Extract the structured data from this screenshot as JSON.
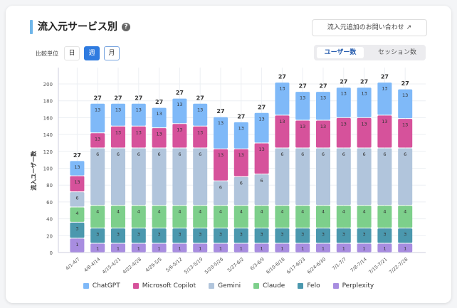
{
  "header": {
    "title": "流入元サービス別",
    "help_icon": "?",
    "contact_button": "流入元追加のお問い合わせ ↗"
  },
  "controls": {
    "unit_label": "比較単位",
    "units": [
      "日",
      "週",
      "月"
    ],
    "selected_unit": "週",
    "metric_tabs": [
      "ユーザー数",
      "セッション数"
    ],
    "selected_metric": "ユーザー数"
  },
  "chart_data": {
    "type": "bar",
    "stacked": true,
    "title": "流入元サービス別",
    "xlabel": "",
    "ylabel": "流入ユーザー数",
    "ylim": [
      0,
      200
    ],
    "yticks": [
      0,
      20,
      40,
      60,
      80,
      100,
      120,
      140,
      160,
      180,
      200
    ],
    "grid": true,
    "legend_position": "bottom",
    "categories": [
      "4/1-4/7",
      "4/8-4/14",
      "4/15-4/21",
      "4/22-4/28",
      "4/29-5/5",
      "5/6-5/12",
      "5/13-5/19",
      "5/20-5/26",
      "5/27-6/2",
      "6/3-6/9",
      "6/10-6/16",
      "6/17-6/23",
      "6/24-6/30",
      "7/1-7/7",
      "7/8-7/14",
      "7/15-7/21",
      "7/22-7/28"
    ],
    "series": [
      {
        "name": "Perplexity",
        "color": "#a88de0",
        "label": "1",
        "values": [
          17,
          11,
          11,
          11,
          11,
          11,
          11,
          11,
          11,
          11,
          11,
          11,
          11,
          11,
          11,
          11,
          11
        ]
      },
      {
        "name": "Felo",
        "color": "#4b98ae",
        "label": "3",
        "values": [
          19,
          18,
          18,
          18,
          18,
          18,
          18,
          18,
          18,
          18,
          18,
          18,
          18,
          18,
          18,
          18,
          18
        ]
      },
      {
        "name": "Claude",
        "color": "#7dcf8b",
        "label": "4",
        "values": [
          18,
          27,
          27,
          27,
          27,
          27,
          27,
          27,
          27,
          27,
          27,
          27,
          27,
          27,
          27,
          27,
          27
        ]
      },
      {
        "name": "Gemini",
        "color": "#b1c5dc",
        "label": "6",
        "values": [
          18,
          68,
          68,
          68,
          68,
          68,
          68,
          29,
          34,
          37,
          68,
          68,
          68,
          68,
          68,
          68,
          68
        ]
      },
      {
        "name": "Microsoft Copilot",
        "color": "#d6529b",
        "label": "13",
        "values": [
          19,
          18,
          26,
          26,
          24,
          29,
          26,
          38,
          33,
          37,
          39,
          33,
          33,
          36,
          36,
          39,
          35
        ]
      },
      {
        "name": "ChatGPT",
        "color": "#7fb9f8",
        "label": "13",
        "values": [
          18,
          35,
          27,
          27,
          24,
          30,
          27,
          38,
          32,
          36,
          39,
          34,
          34,
          36,
          36,
          39,
          35
        ]
      }
    ],
    "total_label": "27",
    "legend_order": [
      "ChatGPT",
      "Microsoft Copilot",
      "Gemini",
      "Claude",
      "Felo",
      "Perplexity"
    ]
  }
}
